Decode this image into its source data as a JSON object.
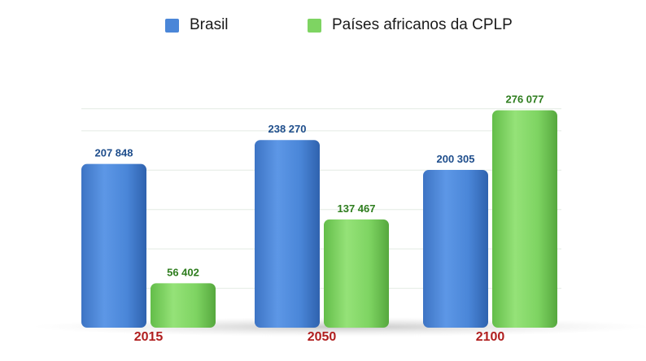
{
  "chart_data": {
    "type": "bar",
    "categories": [
      "2015",
      "2050",
      "2100"
    ],
    "series": [
      {
        "name": "Brasil",
        "values": [
          207848,
          238270,
          200305
        ],
        "labels": [
          "207 848",
          "238 270",
          "200 305"
        ]
      },
      {
        "name": "Países africanos da CPLP",
        "values": [
          56402,
          137467,
          276077
        ],
        "labels": [
          "56 402",
          "137 467",
          "276 077"
        ]
      }
    ],
    "title": "",
    "xlabel": "",
    "ylabel": "",
    "ylim": [
      0,
      300000
    ],
    "grid": true,
    "legend_position": "top",
    "colors": {
      "Brasil": "#4a86d8",
      "Países africanos da CPLP": "#7ed462",
      "brasil_label": "#1f4e8c",
      "cplp_label": "#2e7d1e",
      "category_label": "#b01e1e"
    }
  }
}
